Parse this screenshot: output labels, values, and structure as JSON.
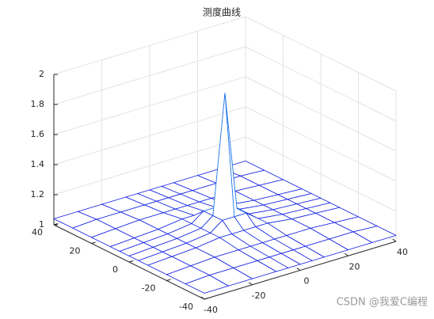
{
  "chart_data": {
    "type": "mesh",
    "title": "测度曲线",
    "x": [
      -40,
      -30,
      -20,
      -10,
      -5,
      0,
      5,
      10,
      20,
      30,
      40
    ],
    "y": [
      -40,
      -30,
      -20,
      -10,
      -5,
      0,
      5,
      10,
      20,
      30,
      40
    ],
    "z": [
      [
        1.04,
        1.04,
        1.04,
        1.04,
        1.04,
        1.04,
        1.04,
        1.04,
        1.04,
        1.04,
        1.04
      ],
      [
        1.04,
        1.05,
        1.05,
        1.05,
        1.05,
        1.05,
        1.05,
        1.05,
        1.05,
        1.05,
        1.04
      ],
      [
        1.04,
        1.05,
        1.06,
        1.06,
        1.06,
        1.06,
        1.06,
        1.06,
        1.06,
        1.05,
        1.04
      ],
      [
        1.04,
        1.05,
        1.06,
        1.08,
        1.08,
        1.08,
        1.08,
        1.08,
        1.06,
        1.05,
        1.04
      ],
      [
        1.04,
        1.05,
        1.06,
        1.08,
        1.14,
        1.14,
        1.14,
        1.08,
        1.06,
        1.05,
        1.04
      ],
      [
        1.04,
        1.05,
        1.06,
        1.08,
        1.14,
        1.93,
        1.14,
        1.08,
        1.06,
        1.05,
        1.04
      ],
      [
        1.04,
        1.05,
        1.06,
        1.08,
        1.14,
        1.14,
        1.14,
        1.08,
        1.06,
        1.05,
        1.04
      ],
      [
        1.04,
        1.05,
        1.06,
        1.08,
        1.08,
        1.08,
        1.08,
        1.08,
        1.06,
        1.05,
        1.04
      ],
      [
        1.04,
        1.05,
        1.06,
        1.06,
        1.06,
        1.06,
        1.06,
        1.06,
        1.06,
        1.05,
        1.04
      ],
      [
        1.04,
        1.05,
        1.05,
        1.05,
        1.05,
        1.05,
        1.05,
        1.05,
        1.05,
        1.05,
        1.04
      ],
      [
        1.04,
        1.04,
        1.04,
        1.04,
        1.04,
        1.04,
        1.04,
        1.04,
        1.04,
        1.04,
        1.04
      ]
    ],
    "xlim": [
      -40,
      40
    ],
    "xticks": [
      -40,
      -20,
      0,
      20,
      40
    ],
    "ylim": [
      -40,
      40
    ],
    "yticks": [
      -40,
      -20,
      0,
      20,
      40
    ],
    "zlim": [
      1,
      2
    ],
    "zticks": [
      1,
      1.2,
      1.4,
      1.6,
      1.8,
      2
    ],
    "grid": true,
    "colormap": [
      "#1010e0",
      "#20c8f0"
    ],
    "watermark": "CSDN @我爱C编程"
  }
}
